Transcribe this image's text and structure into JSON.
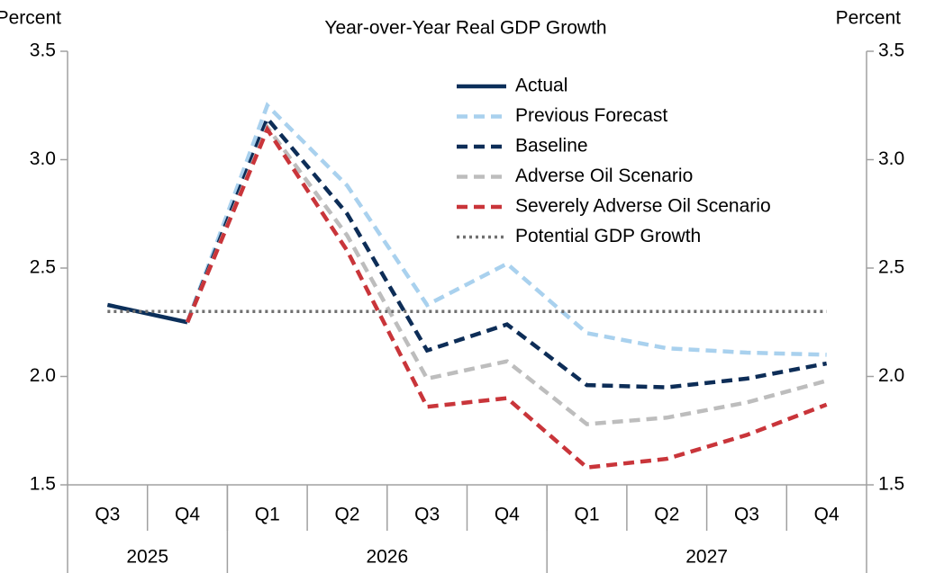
{
  "chart_data": {
    "type": "line",
    "title": "Year-over-Year Real GDP Growth",
    "y_label": "Percent",
    "y2_label": "Percent",
    "categories": [
      "Q3",
      "Q4",
      "Q1",
      "Q2",
      "Q3",
      "Q4",
      "Q1",
      "Q2",
      "Q3",
      "Q4"
    ],
    "category_groups": [
      {
        "label": "2025",
        "span": 2
      },
      {
        "label": "2026",
        "span": 4
      },
      {
        "label": "2027",
        "span": 4
      }
    ],
    "ylim": [
      1.5,
      3.5
    ],
    "yticks": [
      1.5,
      {
        "value": 2.0,
        "label": "2.0"
      },
      2.5,
      {
        "value": 3.0,
        "label": "3.0"
      },
      3.5
    ],
    "y2lim": [
      1.5,
      3.5
    ],
    "y2ticks": [
      1.5,
      {
        "value": 2.0,
        "label": "2.0"
      },
      2.5,
      {
        "value": 3.0,
        "label": "3.0"
      },
      3.5
    ],
    "grid": false,
    "legend": "top",
    "series": [
      {
        "name": "Actual",
        "color": "#0b2f5a",
        "dash": "solid",
        "values": [
          2.33,
          2.25,
          null,
          null,
          null,
          null,
          null,
          null,
          null,
          null
        ]
      },
      {
        "name": "Previous Forecast",
        "color": "#a9d1ee",
        "dash": "dashed",
        "values": [
          null,
          2.25,
          3.25,
          2.88,
          2.33,
          2.52,
          2.2,
          2.13,
          2.11,
          2.1
        ]
      },
      {
        "name": "Baseline",
        "color": "#0d2d57",
        "dash": "dashed",
        "values": [
          null,
          2.25,
          3.19,
          2.75,
          2.12,
          2.24,
          1.96,
          1.95,
          1.99,
          2.06
        ]
      },
      {
        "name": "Adverse Oil Scenario",
        "color": "#bdbdbd",
        "dash": "dashed",
        "values": [
          null,
          2.25,
          3.15,
          2.65,
          1.99,
          2.07,
          1.78,
          1.81,
          1.88,
          1.98
        ]
      },
      {
        "name": "Severely Adverse Oil Scenario",
        "color": "#c9353a",
        "dash": "dashed",
        "values": [
          null,
          2.25,
          3.14,
          2.58,
          1.86,
          1.9,
          1.58,
          1.62,
          1.73,
          1.87
        ]
      },
      {
        "name": "Potential GDP Growth",
        "color": "#707070",
        "dash": "dotted",
        "values": [
          2.3,
          2.3,
          2.3,
          2.3,
          2.3,
          2.3,
          2.3,
          2.3,
          2.3,
          2.3
        ]
      }
    ]
  }
}
